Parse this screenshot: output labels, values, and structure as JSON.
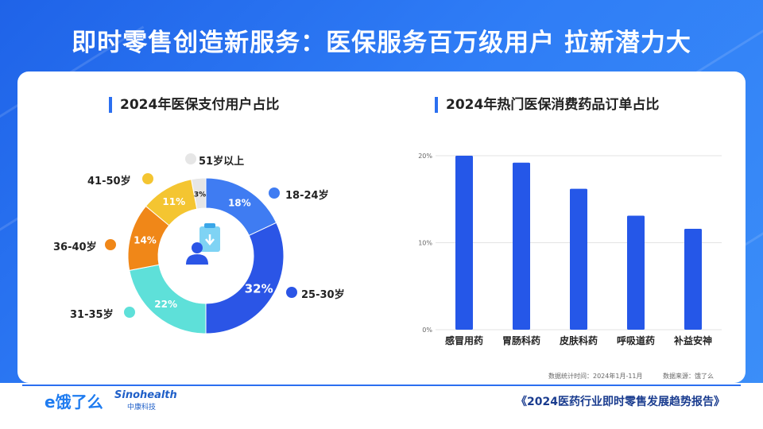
{
  "title": "即时零售创造新服务：医保服务百万级用户 拉新潜力大",
  "colors": {
    "bar": "#2557e8",
    "ring": [
      "#3f7cf2",
      "#2b55e6",
      "#5ee0d9",
      "#f08718",
      "#f4c531",
      "#e6e6e6"
    ]
  },
  "left": {
    "heading": "2024年医保支付用户占比",
    "center_icon": "user-document-icon",
    "chart_data": {
      "type": "donut",
      "slices": [
        {
          "label": "18-24岁",
          "value": 18,
          "pct_text": "18%",
          "color": "#3f7cf2"
        },
        {
          "label": "25-30岁",
          "value": 32,
          "pct_text": "32%",
          "color": "#2b55e6"
        },
        {
          "label": "31-35岁",
          "value": 22,
          "pct_text": "22%",
          "color": "#5ee0d9"
        },
        {
          "label": "36-40岁",
          "value": 14,
          "pct_text": "14%",
          "color": "#f08718"
        },
        {
          "label": "41-50岁",
          "value": 11,
          "pct_text": "11%",
          "color": "#f4c531"
        },
        {
          "label": "51岁以上",
          "value": 3,
          "pct_text": "3%",
          "color": "#e6e6e6"
        }
      ]
    }
  },
  "right": {
    "heading": "2024年热门医保消费药品订单占比",
    "chart_data": {
      "type": "bar",
      "categories": [
        "感冒用药",
        "胃肠科药",
        "皮肤科药",
        "呼吸道药",
        "补益安神"
      ],
      "values": [
        20,
        19.2,
        16.2,
        13.1,
        11.6
      ],
      "ylim": [
        0,
        20
      ],
      "yticks": [
        "0%",
        "10%",
        "20%"
      ],
      "grid": true
    }
  },
  "footer": {
    "stat_time": "数据统计时间：2024年1月-11月",
    "source": "数据来源：饿了么",
    "report": "《2024医药行业即时零售发展趋势报告》",
    "logo_eleme": "e饿了么",
    "logo_sino": "Sinohealth",
    "logo_sino_cn": "中康科技"
  }
}
